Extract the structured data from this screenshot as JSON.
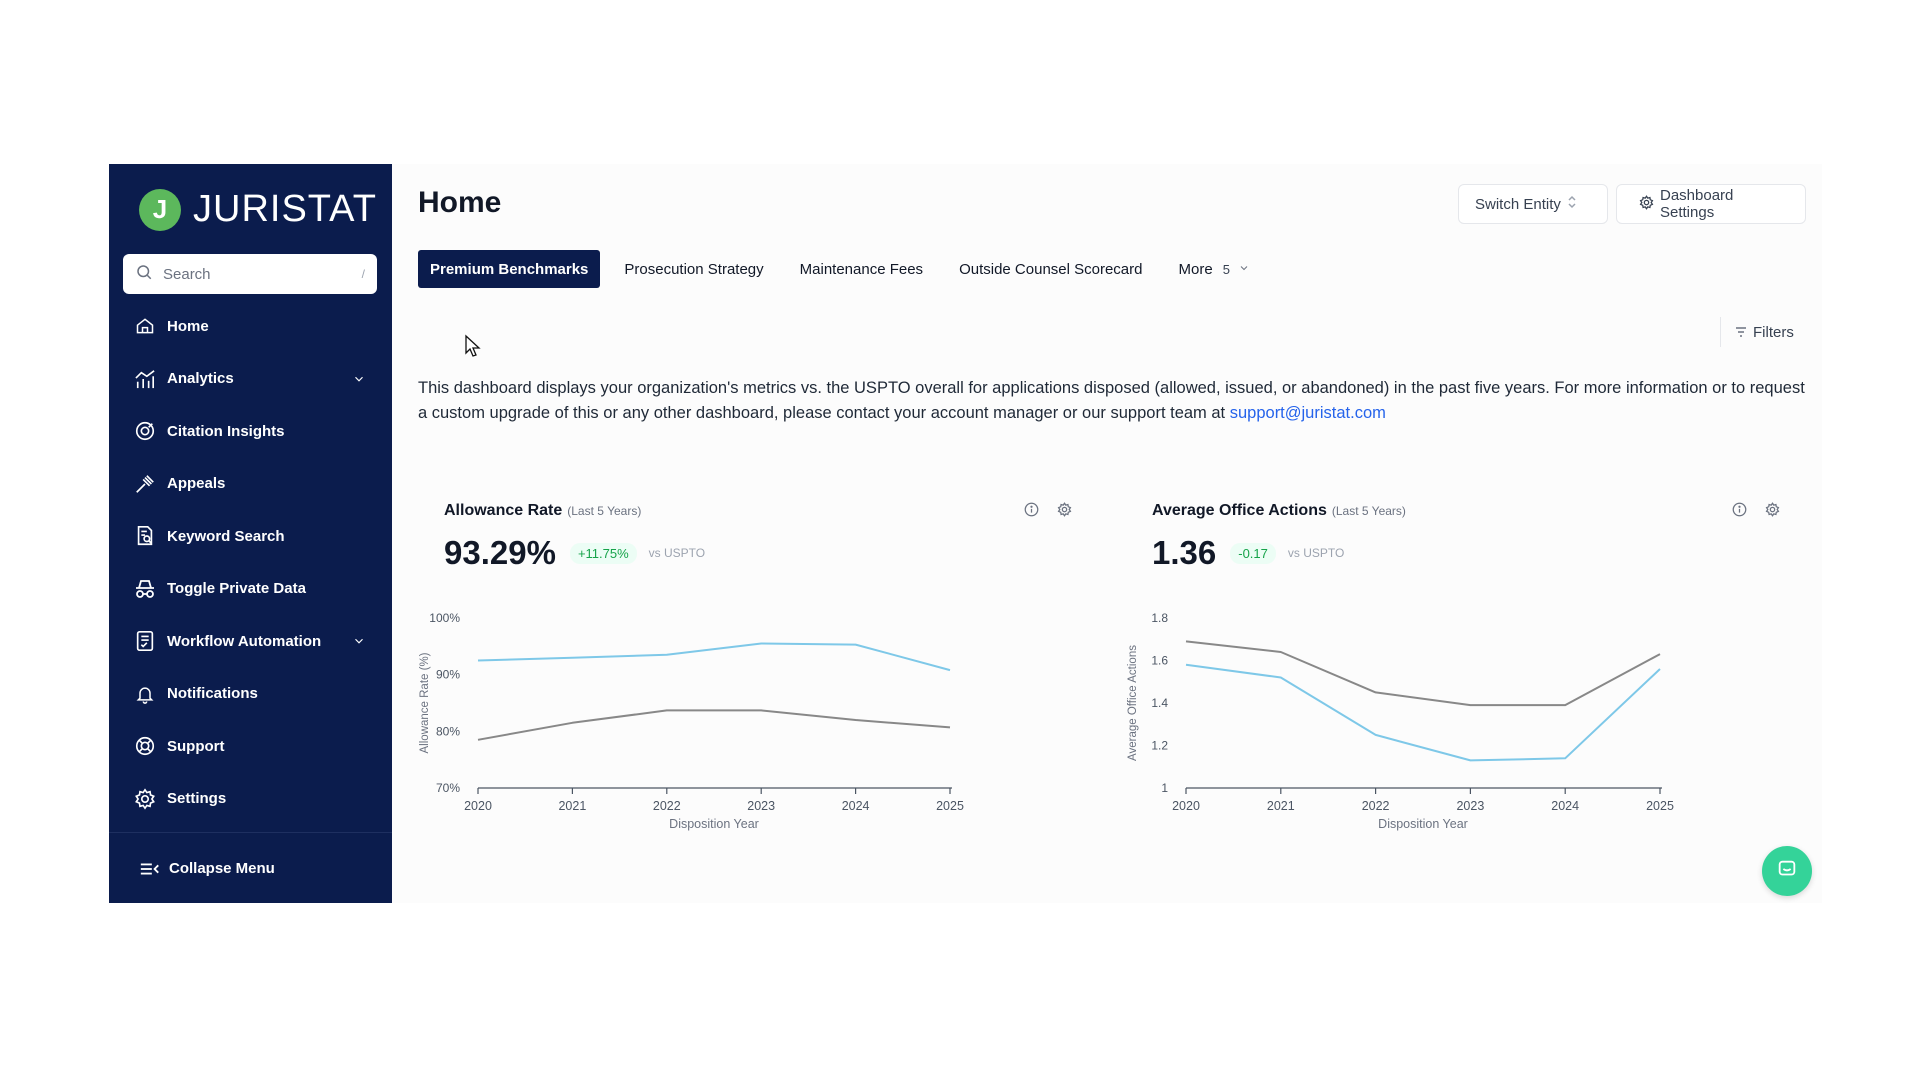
{
  "sidebar": {
    "logo_letter": "J",
    "logo_text": "JURISTAT",
    "search_placeholder": "Search",
    "search_shortcut": "/",
    "items": [
      {
        "label": "Home",
        "icon": "home-icon"
      },
      {
        "label": "Analytics",
        "icon": "analytics-icon",
        "expandable": true
      },
      {
        "label": "Citation Insights",
        "icon": "citation-icon"
      },
      {
        "label": "Appeals",
        "icon": "gavel-icon"
      },
      {
        "label": "Keyword Search",
        "icon": "document-search-icon"
      },
      {
        "label": "Toggle Private Data",
        "icon": "incognito-icon"
      },
      {
        "label": "Workflow Automation",
        "icon": "checklist-icon",
        "expandable": true
      },
      {
        "label": "Notifications",
        "icon": "bell-icon"
      },
      {
        "label": "Support",
        "icon": "lifebuoy-icon"
      },
      {
        "label": "Settings",
        "icon": "gear-icon"
      }
    ],
    "collapse_label": "Collapse Menu"
  },
  "header": {
    "title": "Home",
    "switch_entity_label": "Switch Entity",
    "dashboard_settings_label": "Dashboard Settings"
  },
  "tabs": [
    {
      "label": "Premium Benchmarks",
      "active": true
    },
    {
      "label": "Prosecution Strategy"
    },
    {
      "label": "Maintenance Fees"
    },
    {
      "label": "Outside Counsel Scorecard"
    }
  ],
  "more_tab": {
    "label": "More",
    "count": "5"
  },
  "filters_label": "Filters",
  "description": {
    "text": "This dashboard displays your organization's metrics vs. the USPTO overall for applications disposed (allowed, issued, or abandoned) in the past five years. For more information or to request a custom upgrade of this or any other dashboard, please contact your account manager or our support team at",
    "link": "support@juristat.com"
  },
  "colors": {
    "sidebar_bg": "#0b1c4d",
    "org_series": "#7ec8e8",
    "uspto_series": "#888888",
    "delta_green": "#16a34a",
    "chat_button": "#34d399"
  },
  "cards": {
    "allowance": {
      "title": "Allowance Rate",
      "subtitle": "(Last 5 Years)",
      "value": "93.29%",
      "delta": "+11.75%",
      "vs": "vs USPTO"
    },
    "office_actions": {
      "title": "Average Office Actions",
      "subtitle": "(Last 5 Years)",
      "value": "1.36",
      "delta": "-0.17",
      "vs": "vs USPTO"
    }
  },
  "chart_data": [
    {
      "type": "line",
      "xlabel": "Disposition Year",
      "ylabel": "Allowance Rate (%)",
      "x": [
        2020,
        2021,
        2022,
        2023,
        2024,
        2025
      ],
      "ylim": [
        70,
        100
      ],
      "yticks": [
        "70%",
        "80%",
        "90%",
        "100%"
      ],
      "yticks_values": [
        70,
        80,
        90,
        100
      ],
      "series": [
        {
          "color": "#7ec8e8",
          "values": [
            92.5,
            93.0,
            93.5,
            95.5,
            95.3,
            90.8
          ]
        },
        {
          "color": "#888888",
          "values": [
            78.5,
            81.5,
            83.7,
            83.7,
            82.0,
            80.7
          ]
        }
      ]
    },
    {
      "type": "line",
      "xlabel": "Disposition Year",
      "ylabel": "Average Office Actions",
      "x": [
        2020,
        2021,
        2022,
        2023,
        2024,
        2025
      ],
      "ylim": [
        1.0,
        1.8
      ],
      "yticks": [
        "1",
        "1.2",
        "1.4",
        "1.6",
        "1.8"
      ],
      "yticks_values": [
        1.0,
        1.2,
        1.4,
        1.6,
        1.8
      ],
      "series": [
        {
          "color": "#7ec8e8",
          "values": [
            1.58,
            1.52,
            1.25,
            1.13,
            1.14,
            1.56
          ]
        },
        {
          "color": "#888888",
          "values": [
            1.69,
            1.64,
            1.45,
            1.39,
            1.39,
            1.63
          ]
        }
      ]
    }
  ]
}
